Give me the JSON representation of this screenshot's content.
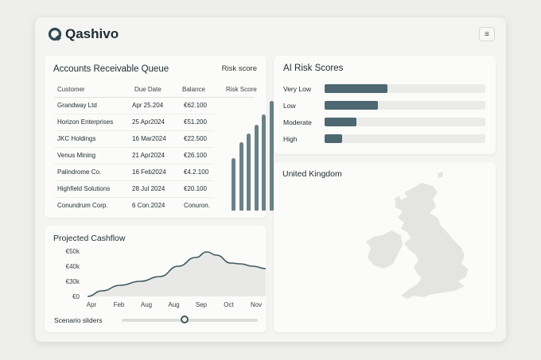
{
  "app": {
    "name": "Qashivo",
    "menu_icon": "hamburger-icon"
  },
  "accounts_receivable": {
    "title": "Accounts Receivable Queue",
    "risk_link": "Risk score",
    "columns": [
      "Customer",
      "Due Date",
      "Balance",
      "Risk Score"
    ],
    "rows": [
      {
        "customer": "Grandway Ltd",
        "due": "Apr 25.204",
        "balance": "€62.100"
      },
      {
        "customer": "Horizon Enterprises",
        "due": "25 Apr2024",
        "balance": "€51.200"
      },
      {
        "customer": "JKC Holdings",
        "due": "16 Mar2024",
        "balance": "€22.500"
      },
      {
        "customer": "Venus Mining",
        "due": "21 Apr2024",
        "balance": "€26.100"
      },
      {
        "customer": "Palindrome Co.",
        "due": "16 Feb2024",
        "balance": "€4.2.100"
      },
      {
        "customer": "Highfield Solutions",
        "due": "28 Jul 2024",
        "balance": "€20.100"
      },
      {
        "customer": "Conundrum Corp.",
        "due": "6 Con.2024",
        "balance": "Conuron."
      }
    ],
    "risk_spark": [
      0.48,
      0.62,
      0.7,
      0.78,
      0.88,
      1.0
    ],
    "spark_color": "#6b8188"
  },
  "ai_risk": {
    "title": "AI Risk Scores",
    "bars": [
      {
        "label": "Very Low",
        "value": 0.39
      },
      {
        "label": "Low",
        "value": 0.33
      },
      {
        "label": "Moderate",
        "value": 0.2
      },
      {
        "label": "High",
        "value": 0.11
      }
    ],
    "bar_color": "#4d6870"
  },
  "map": {
    "title": "United Kingdom"
  },
  "cashflow": {
    "title": "Projected Cashflow",
    "y_ticks": [
      "€50k",
      "€40k",
      "€30k",
      "€0"
    ],
    "x_ticks": [
      "Apr",
      "Feb",
      "Aug",
      "Aug",
      "Sep",
      "Oct",
      "Nov"
    ],
    "slider_label": "Scenario sliders",
    "slider_value": 0.46,
    "line_color": "#3f5a62"
  }
}
